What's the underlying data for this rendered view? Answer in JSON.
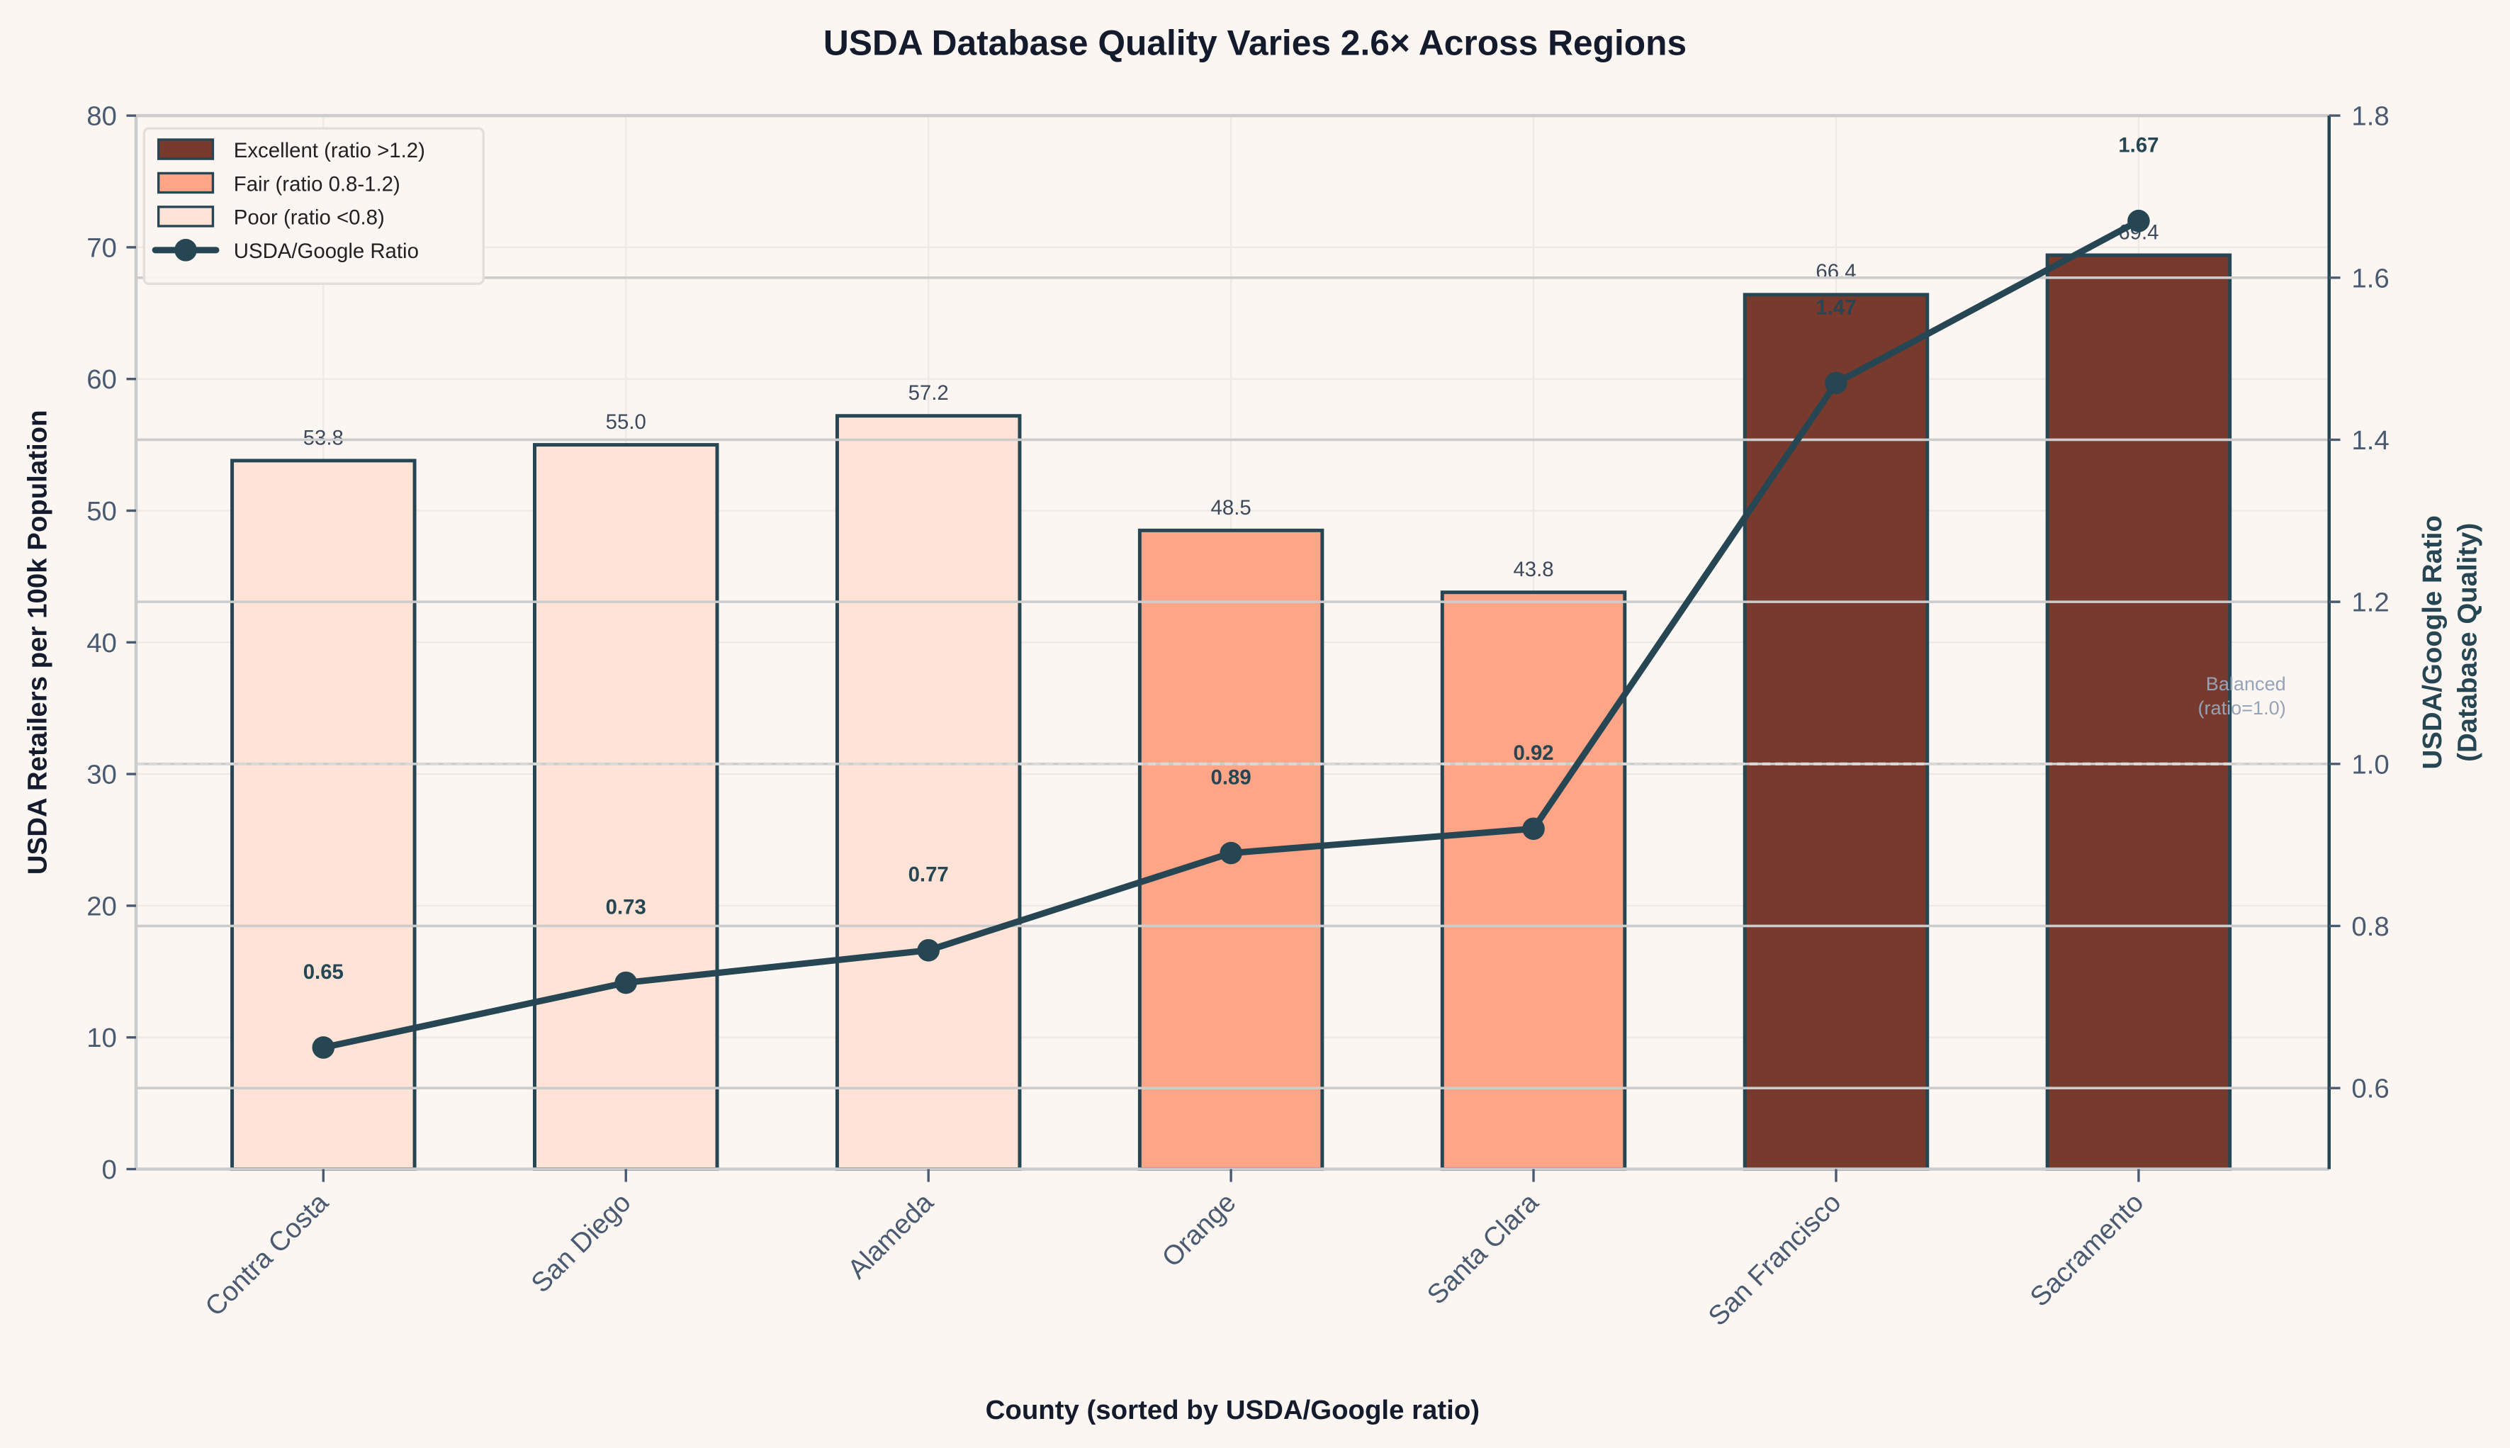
{
  "chart_data": {
    "type": "bar+line",
    "title": "USDA Database Quality Varies 2.6× Across Regions",
    "xlabel": "County (sorted by USDA/Google ratio)",
    "ylabel": "USDA Retailers per 100k Population",
    "y2label_line1": "USDA/Google Ratio",
    "y2label_line2": "(Database Quality)",
    "ylim": [
      0,
      80
    ],
    "y2lim": [
      0.5,
      1.8
    ],
    "yticks": [
      0,
      10,
      20,
      30,
      40,
      50,
      60,
      70,
      80
    ],
    "y2ticks": [
      0.6,
      0.8,
      1.0,
      1.2,
      1.4,
      1.6,
      1.8
    ],
    "categories": [
      "Contra Costa",
      "San Diego",
      "Alameda",
      "Orange",
      "Santa Clara",
      "San Francisco",
      "Sacramento"
    ],
    "bar_values": [
      53.8,
      55.0,
      57.2,
      48.5,
      43.8,
      66.4,
      69.4
    ],
    "bar_labels": [
      "53.8",
      "55.0",
      "57.2",
      "48.5",
      "43.8",
      "66.4",
      "69.4"
    ],
    "ratio_values": [
      0.65,
      0.73,
      0.77,
      0.89,
      0.92,
      1.47,
      1.67
    ],
    "ratio_labels": [
      "0.65",
      "0.73",
      "0.77",
      "0.89",
      "0.92",
      "1.47",
      "1.67"
    ],
    "bar_category": [
      "poor",
      "poor",
      "poor",
      "fair",
      "fair",
      "excellent",
      "excellent"
    ],
    "reference_line": {
      "value": 1.0,
      "label_line1": "Balanced",
      "label_line2": "(ratio=1.0)"
    },
    "legend": {
      "placement": "top-left",
      "entries": [
        {
          "key": "excellent",
          "label": "Excellent (ratio >1.2)"
        },
        {
          "key": "fair",
          "label": "Fair (ratio 0.8-1.2)"
        },
        {
          "key": "poor",
          "label": "Poor (ratio <0.8)"
        },
        {
          "key": "line",
          "label": "USDA/Google Ratio"
        }
      ]
    },
    "colors": {
      "excellent": "#783a2c",
      "fair": "#ffa587",
      "poor": "#ffe3d6",
      "line": "#264653",
      "background": "#fbf6f2"
    }
  }
}
